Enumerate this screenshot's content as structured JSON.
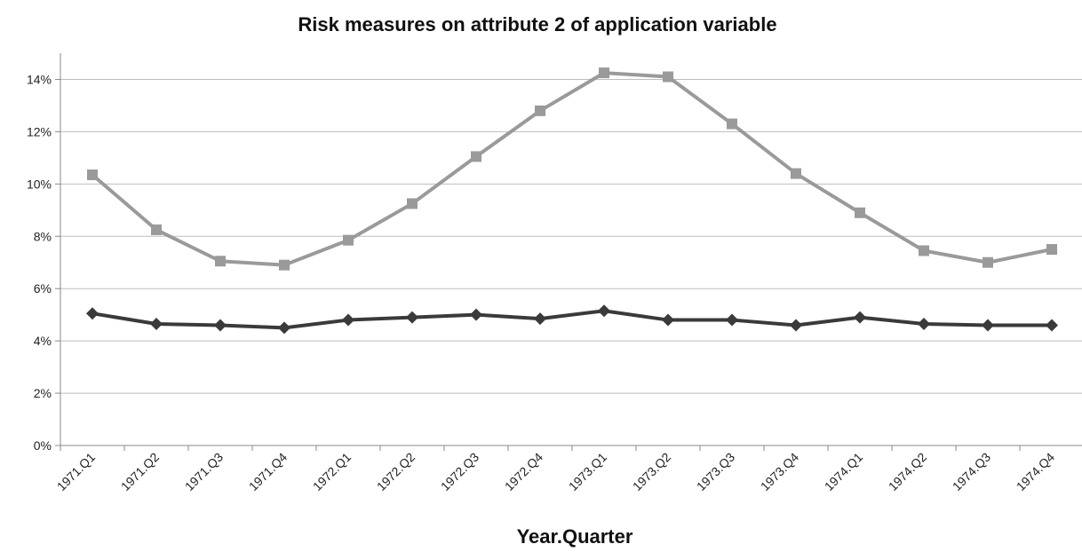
{
  "chart_data": {
    "type": "line",
    "title": "Risk measures on attribute 2 of application variable",
    "xlabel": "Year.Quarter",
    "ylabel": "",
    "categories": [
      "1971.Q1",
      "1971.Q2",
      "1971.Q3",
      "1971.Q4",
      "1972.Q1",
      "1972.Q2",
      "1972.Q3",
      "1972.Q4",
      "1973.Q1",
      "1973.Q2",
      "1973.Q3",
      "1973.Q4",
      "1974.Q1",
      "1974.Q2",
      "1974.Q3",
      "1974.Q4"
    ],
    "ylim": [
      0,
      15
    ],
    "yticks": [
      0,
      2,
      4,
      6,
      8,
      10,
      12,
      14
    ],
    "ytick_labels": [
      "0%",
      "2%",
      "4%",
      "6%",
      "8%",
      "10%",
      "12%",
      "14%"
    ],
    "grid": "horizontal",
    "legend": "none",
    "series": [
      {
        "marker": "square",
        "color": "#9a9a9a",
        "values": [
          10.35,
          8.25,
          7.05,
          6.9,
          7.85,
          9.25,
          11.05,
          12.8,
          14.25,
          14.1,
          12.3,
          10.4,
          8.9,
          7.45,
          7.0,
          7.5
        ]
      },
      {
        "marker": "diamond",
        "color": "#3a3a3a",
        "values": [
          5.05,
          4.65,
          4.6,
          4.5,
          4.8,
          4.9,
          5.0,
          4.85,
          5.15,
          4.8,
          4.8,
          4.6,
          4.9,
          4.65,
          4.6,
          4.6
        ]
      }
    ]
  }
}
